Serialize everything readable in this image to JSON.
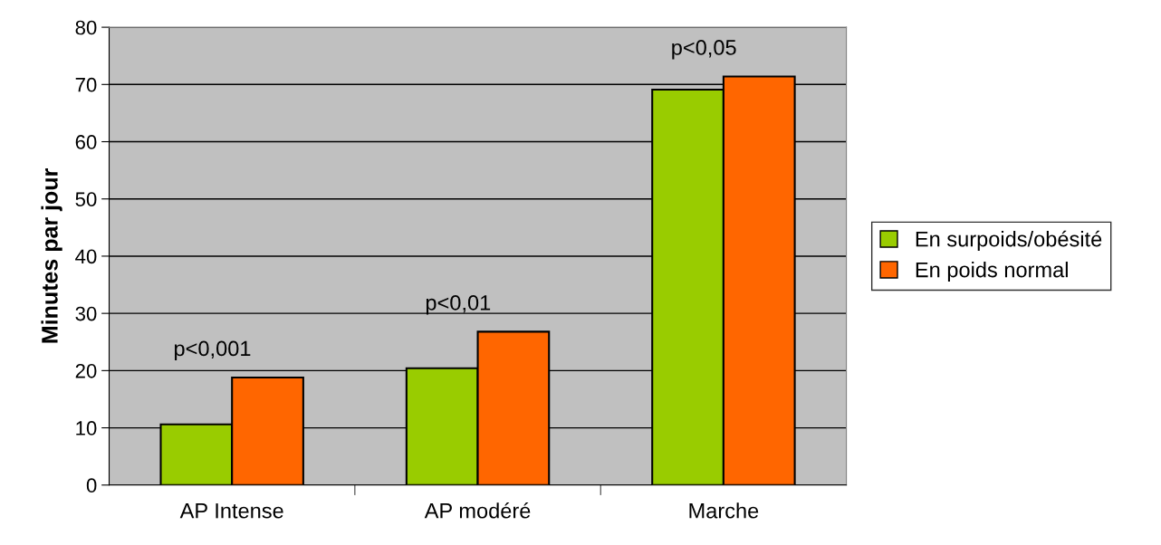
{
  "chart_data": {
    "type": "bar",
    "ylabel": "Minutes par jour",
    "categories": [
      "AP Intense",
      "AP modéré",
      "Marche"
    ],
    "series": [
      {
        "name": "En surpoids/obésité",
        "color": "#99cc00",
        "values": [
          10.6,
          20.4,
          69.1
        ]
      },
      {
        "name": "En poids normal",
        "color": "#ff6600",
        "values": [
          18.8,
          26.8,
          71.4
        ]
      }
    ],
    "annotations": [
      "p<0,001",
      "p<0,01",
      "p<0,05"
    ],
    "ylim": [
      0,
      80
    ],
    "yticks": [
      0,
      10,
      20,
      30,
      40,
      50,
      60,
      70,
      80
    ],
    "grid": "y",
    "legend": "right"
  }
}
